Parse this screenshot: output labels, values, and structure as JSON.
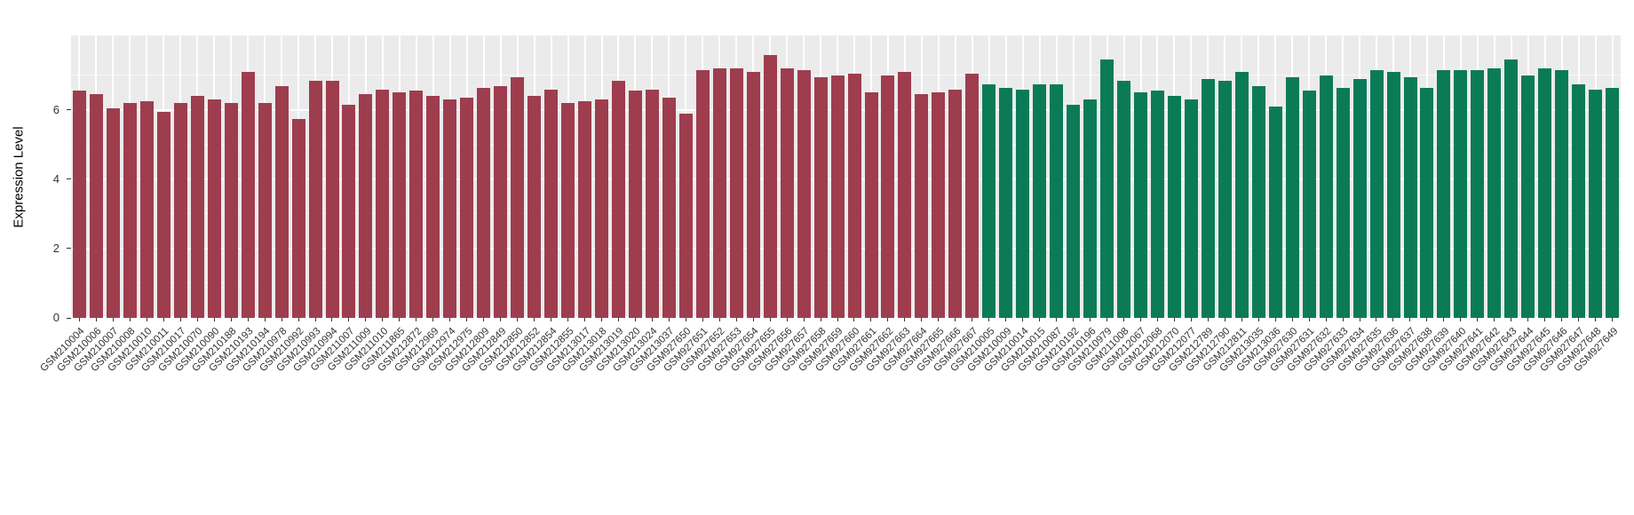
{
  "chart_data": {
    "type": "bar",
    "title": "",
    "xlabel": "",
    "ylabel": "Expression Level",
    "ylim": [
      0,
      8.15
    ],
    "yticks": [
      0,
      2,
      4,
      6
    ],
    "yticks_minor": [
      1,
      3,
      5,
      7
    ],
    "grid": "on",
    "legend_position": "none",
    "panel_bg": "#EBEBEB",
    "grid_color": "#FFFFFF",
    "group_colors": {
      "A": "#9E3D4E",
      "B": "#0B7B57"
    },
    "categories": [
      "GSM210004",
      "GSM210006",
      "GSM210007",
      "GSM210008",
      "GSM210010",
      "GSM210011",
      "GSM210017",
      "GSM210070",
      "GSM210090",
      "GSM210188",
      "GSM210193",
      "GSM210194",
      "GSM210978",
      "GSM210992",
      "GSM210993",
      "GSM210994",
      "GSM211007",
      "GSM211009",
      "GSM211010",
      "GSM211865",
      "GSM212872",
      "GSM212969",
      "GSM212974",
      "GSM212975",
      "GSM212809",
      "GSM212849",
      "GSM212850",
      "GSM212852",
      "GSM212854",
      "GSM212855",
      "GSM213017",
      "GSM213018",
      "GSM213019",
      "GSM213020",
      "GSM213024",
      "GSM213037",
      "GSM927650",
      "GSM927651",
      "GSM927652",
      "GSM927653",
      "GSM927654",
      "GSM927655",
      "GSM927656",
      "GSM927657",
      "GSM927658",
      "GSM927659",
      "GSM927660",
      "GSM927661",
      "GSM927662",
      "GSM927663",
      "GSM927664",
      "GSM927665",
      "GSM927666",
      "GSM927667",
      "GSM210005",
      "GSM210009",
      "GSM210014",
      "GSM210015",
      "GSM210087",
      "GSM210192",
      "GSM210196",
      "GSM210979",
      "GSM211008",
      "GSM212067",
      "GSM212068",
      "GSM212070",
      "GSM212077",
      "GSM212789",
      "GSM212790",
      "GSM212811",
      "GSM213035",
      "GSM213036",
      "GSM927630",
      "GSM927631",
      "GSM927632",
      "GSM927633",
      "GSM927634",
      "GSM927635",
      "GSM927636",
      "GSM927637",
      "GSM927638",
      "GSM927639",
      "GSM927640",
      "GSM927641",
      "GSM927642",
      "GSM927643",
      "GSM927644",
      "GSM927645",
      "GSM927646",
      "GSM927647",
      "GSM927648",
      "GSM927649"
    ],
    "values": [
      6.55,
      6.45,
      6.05,
      6.2,
      6.25,
      5.95,
      6.2,
      6.4,
      6.3,
      6.2,
      7.1,
      6.2,
      6.7,
      5.75,
      6.85,
      6.85,
      6.15,
      6.45,
      6.6,
      6.5,
      6.55,
      6.4,
      6.3,
      6.35,
      6.65,
      6.7,
      6.95,
      6.4,
      6.6,
      6.2,
      6.25,
      6.3,
      6.85,
      6.55,
      6.6,
      6.35,
      5.9,
      7.15,
      7.2,
      7.2,
      7.1,
      7.6,
      7.2,
      7.15,
      6.95,
      7.0,
      7.05,
      6.5,
      7.0,
      7.1,
      6.45,
      6.5,
      6.6,
      7.05,
      6.75,
      6.65,
      6.6,
      6.75,
      6.75,
      6.15,
      6.3,
      7.45,
      6.85,
      6.5,
      6.55,
      6.4,
      6.3,
      6.9,
      6.85,
      7.1,
      6.7,
      6.1,
      6.95,
      6.55,
      7.0,
      6.65,
      6.9,
      7.15,
      7.1,
      6.95,
      6.65,
      7.15,
      7.15,
      7.15,
      7.2,
      7.45,
      7.0,
      7.2,
      7.15,
      6.75,
      6.6,
      6.65
    ],
    "groups": [
      "A",
      "A",
      "A",
      "A",
      "A",
      "A",
      "A",
      "A",
      "A",
      "A",
      "A",
      "A",
      "A",
      "A",
      "A",
      "A",
      "A",
      "A",
      "A",
      "A",
      "A",
      "A",
      "A",
      "A",
      "A",
      "A",
      "A",
      "A",
      "A",
      "A",
      "A",
      "A",
      "A",
      "A",
      "A",
      "A",
      "A",
      "A",
      "A",
      "A",
      "A",
      "A",
      "A",
      "A",
      "A",
      "A",
      "A",
      "A",
      "A",
      "A",
      "A",
      "A",
      "A",
      "A",
      "B",
      "B",
      "B",
      "B",
      "B",
      "B",
      "B",
      "B",
      "B",
      "B",
      "B",
      "B",
      "B",
      "B",
      "B",
      "B",
      "B",
      "B",
      "B",
      "B",
      "B",
      "B",
      "B",
      "B",
      "B",
      "B",
      "B",
      "B",
      "B",
      "B",
      "B",
      "B",
      "B",
      "B",
      "B",
      "B",
      "B",
      "B"
    ]
  }
}
